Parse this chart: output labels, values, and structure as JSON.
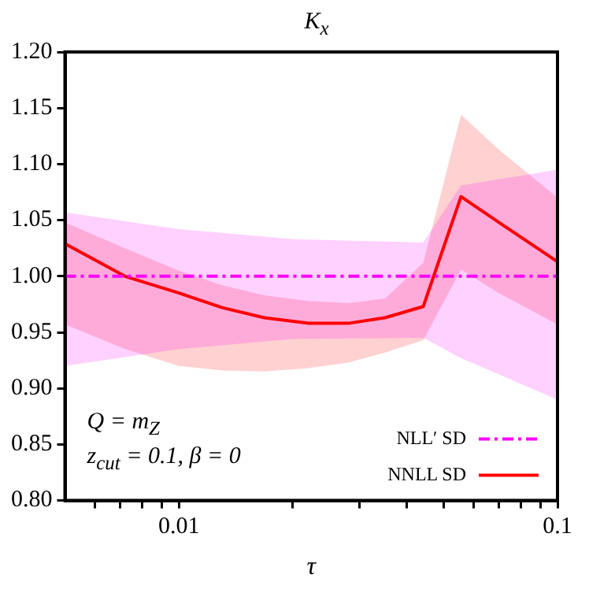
{
  "chart_data": {
    "type": "line",
    "title": "K$_{x}$",
    "xlabel": "τ",
    "log": "x",
    "xlim": [
      0.005,
      0.1
    ],
    "xticks": [
      {
        "value": 0.006,
        "label": null
      },
      {
        "value": 0.007,
        "label": null
      },
      {
        "value": 0.008,
        "label": null
      },
      {
        "value": 0.009,
        "label": null
      },
      0.01,
      {
        "value": 0.02,
        "label": null
      },
      {
        "value": 0.03,
        "label": null
      },
      {
        "value": 0.04,
        "label": null
      },
      {
        "value": 0.05,
        "label": null
      },
      {
        "value": 0.06,
        "label": null
      },
      {
        "value": 0.07,
        "label": null
      },
      {
        "value": 0.08,
        "label": null
      },
      {
        "value": 0.09,
        "label": null
      },
      0.1
    ],
    "ylim": [
      0.8,
      1.2
    ],
    "yticks": [
      {
        "value": 0.8,
        "label": "0.80"
      },
      {
        "value": 0.85,
        "label": "0.85"
      },
      {
        "value": 0.9,
        "label": "0.90"
      },
      {
        "value": 0.95,
        "label": "0.95"
      },
      {
        "value": 1.0,
        "label": "1.00"
      },
      {
        "value": 1.05,
        "label": "1.05"
      },
      {
        "value": 1.1,
        "label": "1.10"
      },
      {
        "value": 1.15,
        "label": "1.15"
      },
      {
        "value": 1.2,
        "label": "1.20"
      }
    ],
    "legend": "bottom right",
    "annotations": [
      "Q = m$_{Z}$",
      "z$_{cut}$ = 0.1, β = 0"
    ],
    "series": [
      {
        "name": "NLL′ SD",
        "color": "#ff00ff",
        "line_style": "dashed",
        "x": [
          0.005,
          0.01,
          0.02,
          0.0442,
          0.0556,
          0.1
        ],
        "values": [
          1.0,
          1.0,
          1.0,
          1.0,
          1.0,
          1.0
        ],
        "lower": [
          0.92,
          0.935,
          0.944,
          0.945,
          0.927,
          0.89
        ],
        "upper": [
          1.057,
          1.042,
          1.033,
          1.03,
          1.081,
          1.095
        ]
      },
      {
        "name": "NNLL SD",
        "color": "#ff0000",
        "line_style": "solid",
        "x": [
          0.005,
          0.0072,
          0.01,
          0.013,
          0.0168,
          0.022,
          0.028,
          0.035,
          0.0442,
          0.0556,
          0.07,
          0.1
        ],
        "values": [
          1.029,
          1.0,
          0.985,
          0.972,
          0.963,
          0.958,
          0.958,
          0.963,
          0.973,
          1.071,
          1.048,
          1.013
        ],
        "lower": [
          0.957,
          0.935,
          0.92,
          0.916,
          0.915,
          0.918,
          0.923,
          0.932,
          0.943,
          1.006,
          0.985,
          0.957
        ],
        "upper": [
          1.048,
          1.025,
          1.005,
          0.992,
          0.983,
          0.978,
          0.976,
          0.98,
          1.012,
          1.144,
          1.113,
          1.07
        ]
      }
    ]
  }
}
